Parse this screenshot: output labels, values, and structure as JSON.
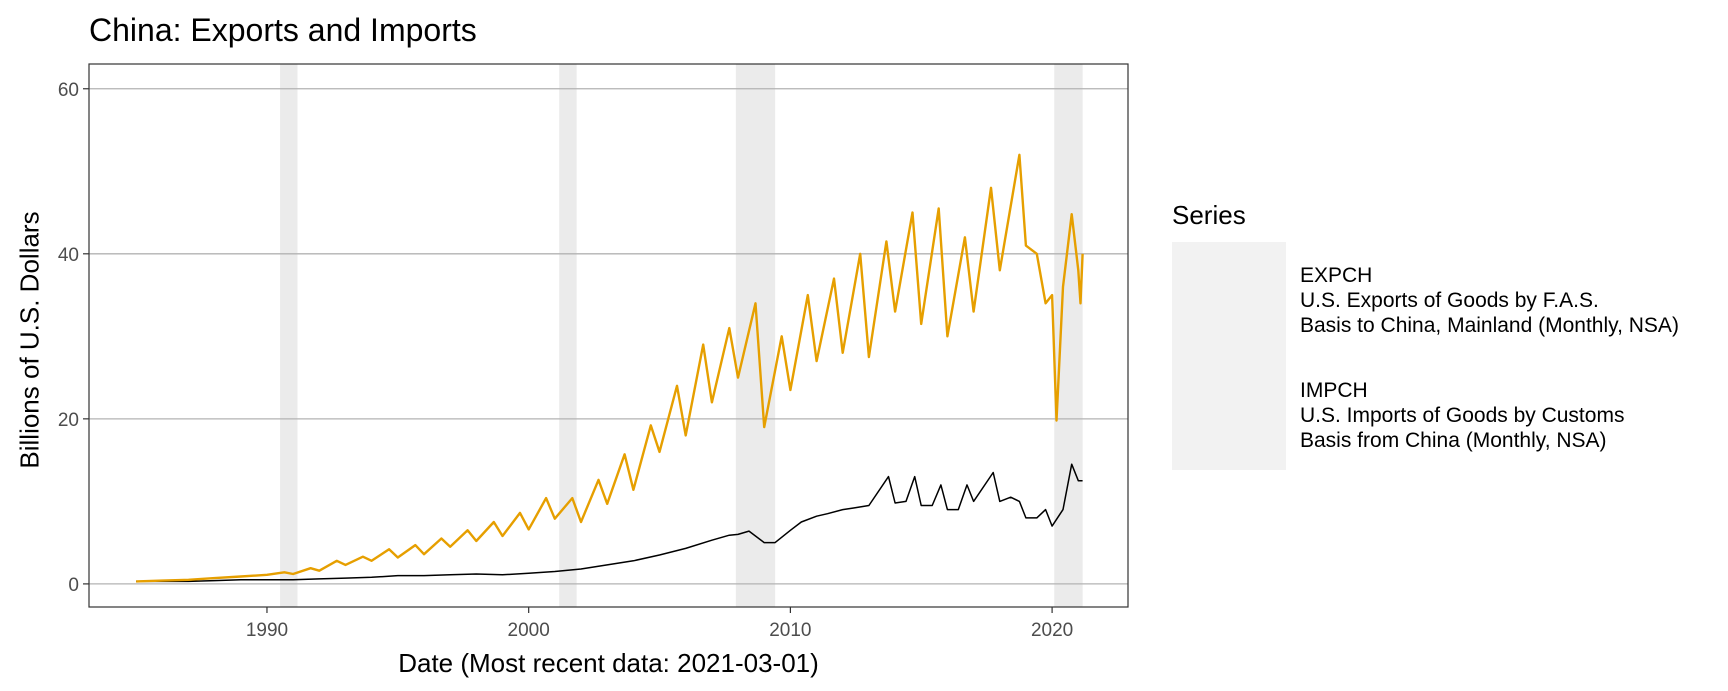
{
  "chart_data": {
    "type": "line",
    "title": "China: Exports and Imports",
    "xlabel": "Date (Most recent data: 2021-03-01)",
    "ylabel": "Billions of U.S. Dollars",
    "xlim": [
      1983.2,
      2022.9
    ],
    "ylim": [
      -2.8,
      63
    ],
    "x_ticks": [
      1990,
      2000,
      2010,
      2020
    ],
    "y_ticks": [
      0,
      20,
      40,
      60
    ],
    "grid": "horizontal major",
    "legend": {
      "title": "Series",
      "position": "right",
      "entries": [
        {
          "code": "EXPCH",
          "line1": "U.S. Exports of Goods by F.A.S.",
          "line2": "Basis to China, Mainland (Monthly, NSA)"
        },
        {
          "code": "IMPCH",
          "line1": "U.S. Imports of Goods by Customs",
          "line2": "Basis from China (Monthly, NSA)"
        }
      ]
    },
    "recessions": [
      {
        "start": "1990-07-01",
        "end": "1991-03-01"
      },
      {
        "start": "2001-03-01",
        "end": "2001-11-01"
      },
      {
        "start": "2007-12-01",
        "end": "2009-06-01"
      },
      {
        "start": "2020-02-01",
        "end": "2021-03-01"
      }
    ],
    "series": [
      {
        "name": "EXPCH",
        "color": "#000000",
        "points": [
          [
            "1985-01-01",
            0.3
          ],
          [
            "1986-01-01",
            0.3
          ],
          [
            "1987-01-01",
            0.3
          ],
          [
            "1988-01-01",
            0.4
          ],
          [
            "1989-01-01",
            0.5
          ],
          [
            "1990-01-01",
            0.5
          ],
          [
            "1991-01-01",
            0.5
          ],
          [
            "1992-01-01",
            0.6
          ],
          [
            "1993-01-01",
            0.7
          ],
          [
            "1994-01-01",
            0.8
          ],
          [
            "1995-01-01",
            1.0
          ],
          [
            "1996-01-01",
            1.0
          ],
          [
            "1997-01-01",
            1.1
          ],
          [
            "1998-01-01",
            1.2
          ],
          [
            "1999-01-01",
            1.1
          ],
          [
            "2000-01-01",
            1.3
          ],
          [
            "2001-01-01",
            1.5
          ],
          [
            "2002-01-01",
            1.8
          ],
          [
            "2003-01-01",
            2.3
          ],
          [
            "2004-01-01",
            2.8
          ],
          [
            "2005-01-01",
            3.5
          ],
          [
            "2006-01-01",
            4.3
          ],
          [
            "2007-01-01",
            5.3
          ],
          [
            "2007-09-01",
            5.9
          ],
          [
            "2008-01-01",
            6.0
          ],
          [
            "2008-06-01",
            6.4
          ],
          [
            "2009-01-01",
            5.0
          ],
          [
            "2009-06-01",
            5.0
          ],
          [
            "2010-01-01",
            6.5
          ],
          [
            "2010-06-01",
            7.5
          ],
          [
            "2011-01-01",
            8.2
          ],
          [
            "2011-06-01",
            8.5
          ],
          [
            "2012-01-01",
            9.0
          ],
          [
            "2012-06-01",
            9.2
          ],
          [
            "2013-01-01",
            9.5
          ],
          [
            "2013-10-01",
            13.0
          ],
          [
            "2014-01-01",
            9.8
          ],
          [
            "2014-06-01",
            10.0
          ],
          [
            "2014-10-01",
            13.0
          ],
          [
            "2015-01-01",
            9.5
          ],
          [
            "2015-06-01",
            9.5
          ],
          [
            "2015-10-01",
            12.0
          ],
          [
            "2016-01-01",
            9.0
          ],
          [
            "2016-06-01",
            9.0
          ],
          [
            "2016-10-01",
            12.0
          ],
          [
            "2017-01-01",
            10.0
          ],
          [
            "2017-10-01",
            13.5
          ],
          [
            "2018-01-01",
            10.0
          ],
          [
            "2018-06-01",
            10.5
          ],
          [
            "2018-10-01",
            10.0
          ],
          [
            "2019-01-01",
            8.0
          ],
          [
            "2019-06-01",
            8.0
          ],
          [
            "2019-10-01",
            9.0
          ],
          [
            "2020-01-01",
            7.0
          ],
          [
            "2020-06-01",
            9.0
          ],
          [
            "2020-10-01",
            14.5
          ],
          [
            "2021-01-01",
            12.5
          ],
          [
            "2021-03-01",
            12.5
          ]
        ]
      },
      {
        "name": "IMPCH",
        "color": "#E69F00",
        "points": [
          [
            "1985-01-01",
            0.3
          ],
          [
            "1986-01-01",
            0.4
          ],
          [
            "1987-01-01",
            0.5
          ],
          [
            "1988-01-01",
            0.7
          ],
          [
            "1989-01-01",
            0.9
          ],
          [
            "1990-01-01",
            1.1
          ],
          [
            "1990-09-01",
            1.4
          ],
          [
            "1991-01-01",
            1.2
          ],
          [
            "1991-09-01",
            1.9
          ],
          [
            "1992-01-01",
            1.6
          ],
          [
            "1992-09-01",
            2.8
          ],
          [
            "1993-01-01",
            2.3
          ],
          [
            "1993-09-01",
            3.3
          ],
          [
            "1994-01-01",
            2.8
          ],
          [
            "1994-09-01",
            4.2
          ],
          [
            "1995-01-01",
            3.2
          ],
          [
            "1995-09-01",
            4.7
          ],
          [
            "1996-01-01",
            3.6
          ],
          [
            "1996-09-01",
            5.5
          ],
          [
            "1997-01-01",
            4.5
          ],
          [
            "1997-09-01",
            6.5
          ],
          [
            "1998-01-01",
            5.2
          ],
          [
            "1998-09-01",
            7.5
          ],
          [
            "1999-01-01",
            5.8
          ],
          [
            "1999-09-01",
            8.6
          ],
          [
            "2000-01-01",
            6.6
          ],
          [
            "2000-09-01",
            10.4
          ],
          [
            "2001-01-01",
            7.9
          ],
          [
            "2001-09-01",
            10.4
          ],
          [
            "2002-01-01",
            7.5
          ],
          [
            "2002-09-01",
            12.6
          ],
          [
            "2003-01-01",
            9.7
          ],
          [
            "2003-09-01",
            15.7
          ],
          [
            "2004-01-01",
            11.4
          ],
          [
            "2004-09-01",
            19.2
          ],
          [
            "2005-01-01",
            16.0
          ],
          [
            "2005-09-01",
            24.0
          ],
          [
            "2006-01-01",
            18.0
          ],
          [
            "2006-09-01",
            29.0
          ],
          [
            "2007-01-01",
            22.0
          ],
          [
            "2007-09-01",
            31.0
          ],
          [
            "2008-01-01",
            25.0
          ],
          [
            "2008-09-01",
            34.0
          ],
          [
            "2009-01-01",
            19.0
          ],
          [
            "2009-09-01",
            30.0
          ],
          [
            "2010-01-01",
            23.5
          ],
          [
            "2010-09-01",
            35.0
          ],
          [
            "2011-01-01",
            27.0
          ],
          [
            "2011-09-01",
            37.0
          ],
          [
            "2012-01-01",
            28.0
          ],
          [
            "2012-09-01",
            40.0
          ],
          [
            "2013-01-01",
            27.5
          ],
          [
            "2013-09-01",
            41.5
          ],
          [
            "2014-01-01",
            33.0
          ],
          [
            "2014-09-01",
            45.0
          ],
          [
            "2015-01-01",
            31.5
          ],
          [
            "2015-09-01",
            45.5
          ],
          [
            "2016-01-01",
            30.0
          ],
          [
            "2016-09-01",
            42.0
          ],
          [
            "2017-01-01",
            33.0
          ],
          [
            "2017-09-01",
            48.0
          ],
          [
            "2018-01-01",
            38.0
          ],
          [
            "2018-10-01",
            52.0
          ],
          [
            "2019-01-01",
            41.0
          ],
          [
            "2019-06-01",
            40.0
          ],
          [
            "2019-10-01",
            34.0
          ],
          [
            "2020-01-01",
            35.0
          ],
          [
            "2020-03-01",
            19.8
          ],
          [
            "2020-06-01",
            36.0
          ],
          [
            "2020-10-01",
            44.8
          ],
          [
            "2021-01-01",
            38.0
          ],
          [
            "2021-02-01",
            34.0
          ],
          [
            "2021-03-01",
            40.0
          ]
        ]
      }
    ]
  }
}
